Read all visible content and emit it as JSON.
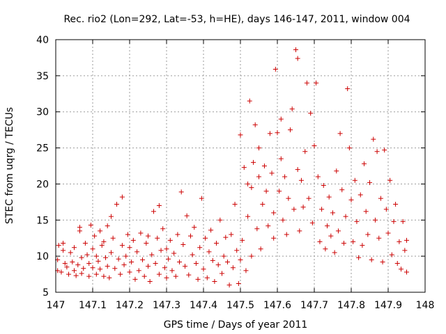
{
  "chart_data": {
    "type": "scatter",
    "title": "Rec. rio2 (Lon=292, Lat=-53, h=HE), days 146-147, 2011, window 004",
    "xlabel": "GPS time / Days of year 2011",
    "ylabel": "STEC from uqrg / TECUs",
    "xlim": [
      147,
      148
    ],
    "ylim": [
      5,
      40
    ],
    "xticks": [
      147,
      147.1,
      147.2,
      147.3,
      147.4,
      147.5,
      147.6,
      147.7,
      147.8,
      147.9,
      148
    ],
    "xtick_labels": [
      "147",
      "147.1",
      "147.2",
      "147.3",
      "147.4",
      "147.5",
      "147.6",
      "147.7",
      "147.8",
      "147.9",
      "148"
    ],
    "yticks": [
      5,
      10,
      15,
      20,
      25,
      30,
      35,
      40
    ],
    "ytick_labels": [
      "5",
      "10",
      "15",
      "20",
      "25",
      "30",
      "35",
      "40"
    ],
    "grid": true,
    "marker": "+",
    "color": "#cc0000",
    "points": [
      [
        147.005,
        8.0
      ],
      [
        147.005,
        9.5
      ],
      [
        147.008,
        11.5
      ],
      [
        147.015,
        7.8
      ],
      [
        147.02,
        10.8
      ],
      [
        147.02,
        11.8
      ],
      [
        147.025,
        9.0
      ],
      [
        147.03,
        8.5
      ],
      [
        147.035,
        7.5
      ],
      [
        147.04,
        10.5
      ],
      [
        147.045,
        9.2
      ],
      [
        147.05,
        8.0
      ],
      [
        147.05,
        11.2
      ],
      [
        147.055,
        7.3
      ],
      [
        147.06,
        8.8
      ],
      [
        147.065,
        13.5
      ],
      [
        147.065,
        14.0
      ],
      [
        147.07,
        9.8
      ],
      [
        147.07,
        7.6
      ],
      [
        147.075,
        8.3
      ],
      [
        147.08,
        11.8
      ],
      [
        147.085,
        10.2
      ],
      [
        147.09,
        7.2
      ],
      [
        147.09,
        9.0
      ],
      [
        147.095,
        14.3
      ],
      [
        147.1,
        8.4
      ],
      [
        147.1,
        11.0
      ],
      [
        147.105,
        12.8
      ],
      [
        147.11,
        7.5
      ],
      [
        147.11,
        10.0
      ],
      [
        147.115,
        9.3
      ],
      [
        147.12,
        13.5
      ],
      [
        147.12,
        8.2
      ],
      [
        147.125,
        11.5
      ],
      [
        147.13,
        7.2
      ],
      [
        147.13,
        12.0
      ],
      [
        147.135,
        9.8
      ],
      [
        147.14,
        14.2
      ],
      [
        147.14,
        8.6
      ],
      [
        147.145,
        7.0
      ],
      [
        147.15,
        10.5
      ],
      [
        147.15,
        15.5
      ],
      [
        147.155,
        12.5
      ],
      [
        147.16,
        8.3
      ],
      [
        147.165,
        17.2
      ],
      [
        147.17,
        9.6
      ],
      [
        147.175,
        7.5
      ],
      [
        147.18,
        11.5
      ],
      [
        147.18,
        18.2
      ],
      [
        147.185,
        8.8
      ],
      [
        147.19,
        10.0
      ],
      [
        147.195,
        13.0
      ],
      [
        147.2,
        7.8
      ],
      [
        147.2,
        11.2
      ],
      [
        147.205,
        9.2
      ],
      [
        147.21,
        12.2
      ],
      [
        147.215,
        6.8
      ],
      [
        147.22,
        10.6
      ],
      [
        147.225,
        8.0
      ],
      [
        147.23,
        13.2
      ],
      [
        147.235,
        9.5
      ],
      [
        147.24,
        7.2
      ],
      [
        147.245,
        11.8
      ],
      [
        147.25,
        8.6
      ],
      [
        147.25,
        12.8
      ],
      [
        147.255,
        6.5
      ],
      [
        147.26,
        10.2
      ],
      [
        147.265,
        16.2
      ],
      [
        147.27,
        9.0
      ],
      [
        147.275,
        12.5
      ],
      [
        147.28,
        7.5
      ],
      [
        147.28,
        17.0
      ],
      [
        147.285,
        10.8
      ],
      [
        147.29,
        13.8
      ],
      [
        147.295,
        8.4
      ],
      [
        147.3,
        11.0
      ],
      [
        147.3,
        7.0
      ],
      [
        147.305,
        9.6
      ],
      [
        147.31,
        12.2
      ],
      [
        147.315,
        8.0
      ],
      [
        147.32,
        10.4
      ],
      [
        147.325,
        7.2
      ],
      [
        147.33,
        13.0
      ],
      [
        147.335,
        9.2
      ],
      [
        147.34,
        18.9
      ],
      [
        147.345,
        11.6
      ],
      [
        147.35,
        8.6
      ],
      [
        147.355,
        15.6
      ],
      [
        147.36,
        7.4
      ],
      [
        147.365,
        12.8
      ],
      [
        147.37,
        10.2
      ],
      [
        147.375,
        14.0
      ],
      [
        147.38,
        9.0
      ],
      [
        147.385,
        6.8
      ],
      [
        147.39,
        11.2
      ],
      [
        147.395,
        18.0
      ],
      [
        147.4,
        8.2
      ],
      [
        147.405,
        12.5
      ],
      [
        147.41,
        7.0
      ],
      [
        147.415,
        10.6
      ],
      [
        147.42,
        13.6
      ],
      [
        147.425,
        9.4
      ],
      [
        147.43,
        6.5
      ],
      [
        147.435,
        11.8
      ],
      [
        147.44,
        8.8
      ],
      [
        147.445,
        15.0
      ],
      [
        147.45,
        7.6
      ],
      [
        147.455,
        10.0
      ],
      [
        147.46,
        12.6
      ],
      [
        147.465,
        9.2
      ],
      [
        147.47,
        6.0
      ],
      [
        147.475,
        13.0
      ],
      [
        147.48,
        8.4
      ],
      [
        147.485,
        17.2
      ],
      [
        147.49,
        10.8
      ],
      [
        147.495,
        6.2
      ],
      [
        147.5,
        26.8
      ],
      [
        147.5,
        9.5
      ],
      [
        147.505,
        12.2
      ],
      [
        147.51,
        22.3
      ],
      [
        147.515,
        8.0
      ],
      [
        147.52,
        20.0
      ],
      [
        147.52,
        15.5
      ],
      [
        147.525,
        31.5
      ],
      [
        147.53,
        19.5
      ],
      [
        147.53,
        10.0
      ],
      [
        147.535,
        23.0
      ],
      [
        147.54,
        28.2
      ],
      [
        147.545,
        13.8
      ],
      [
        147.55,
        21.0
      ],
      [
        147.55,
        25.0
      ],
      [
        147.555,
        11.0
      ],
      [
        147.56,
        17.2
      ],
      [
        147.565,
        22.5
      ],
      [
        147.57,
        19.0
      ],
      [
        147.575,
        14.2
      ],
      [
        147.58,
        27.0
      ],
      [
        147.585,
        21.5
      ],
      [
        147.59,
        16.0
      ],
      [
        147.59,
        12.5
      ],
      [
        147.595,
        35.9
      ],
      [
        147.6,
        27.1
      ],
      [
        147.605,
        19.0
      ],
      [
        147.61,
        23.5
      ],
      [
        147.61,
        29.0
      ],
      [
        147.615,
        15.0
      ],
      [
        147.62,
        21.0
      ],
      [
        147.625,
        13.0
      ],
      [
        147.63,
        18.0
      ],
      [
        147.635,
        27.5
      ],
      [
        147.64,
        30.4
      ],
      [
        147.645,
        16.5
      ],
      [
        147.65,
        38.6
      ],
      [
        147.655,
        37.4
      ],
      [
        147.655,
        22.0
      ],
      [
        147.66,
        13.5
      ],
      [
        147.665,
        20.5
      ],
      [
        147.67,
        16.8
      ],
      [
        147.675,
        24.5
      ],
      [
        147.68,
        34.0
      ],
      [
        147.685,
        18.0
      ],
      [
        147.69,
        29.8
      ],
      [
        147.695,
        14.6
      ],
      [
        147.7,
        25.3
      ],
      [
        147.705,
        34.0
      ],
      [
        147.71,
        21.0
      ],
      [
        147.715,
        12.0
      ],
      [
        147.72,
        16.5
      ],
      [
        147.725,
        19.8
      ],
      [
        147.73,
        11.0
      ],
      [
        147.735,
        14.2
      ],
      [
        147.74,
        18.2
      ],
      [
        147.745,
        12.8
      ],
      [
        147.75,
        16.0
      ],
      [
        147.755,
        10.5
      ],
      [
        147.76,
        21.8
      ],
      [
        147.765,
        13.5
      ],
      [
        147.77,
        27.0
      ],
      [
        147.775,
        19.2
      ],
      [
        147.78,
        11.8
      ],
      [
        147.785,
        15.5
      ],
      [
        147.79,
        33.2
      ],
      [
        147.795,
        25.0
      ],
      [
        147.8,
        17.8
      ],
      [
        147.805,
        12.0
      ],
      [
        147.81,
        20.5
      ],
      [
        147.815,
        14.8
      ],
      [
        147.82,
        9.8
      ],
      [
        147.825,
        18.5
      ],
      [
        147.83,
        11.5
      ],
      [
        147.835,
        22.8
      ],
      [
        147.84,
        16.2
      ],
      [
        147.845,
        13.0
      ],
      [
        147.85,
        20.2
      ],
      [
        147.855,
        9.5
      ],
      [
        147.86,
        26.2
      ],
      [
        147.865,
        15.0
      ],
      [
        147.87,
        24.5
      ],
      [
        147.875,
        12.5
      ],
      [
        147.88,
        18.0
      ],
      [
        147.885,
        9.2
      ],
      [
        147.89,
        24.7
      ],
      [
        147.895,
        16.5
      ],
      [
        147.9,
        13.2
      ],
      [
        147.905,
        20.5
      ],
      [
        147.91,
        10.2
      ],
      [
        147.915,
        14.8
      ],
      [
        147.92,
        17.2
      ],
      [
        147.925,
        9.0
      ],
      [
        147.93,
        12.0
      ],
      [
        147.935,
        8.2
      ],
      [
        147.94,
        14.8
      ],
      [
        147.945,
        10.8
      ],
      [
        147.95,
        7.8
      ],
      [
        147.95,
        12.2
      ]
    ]
  }
}
